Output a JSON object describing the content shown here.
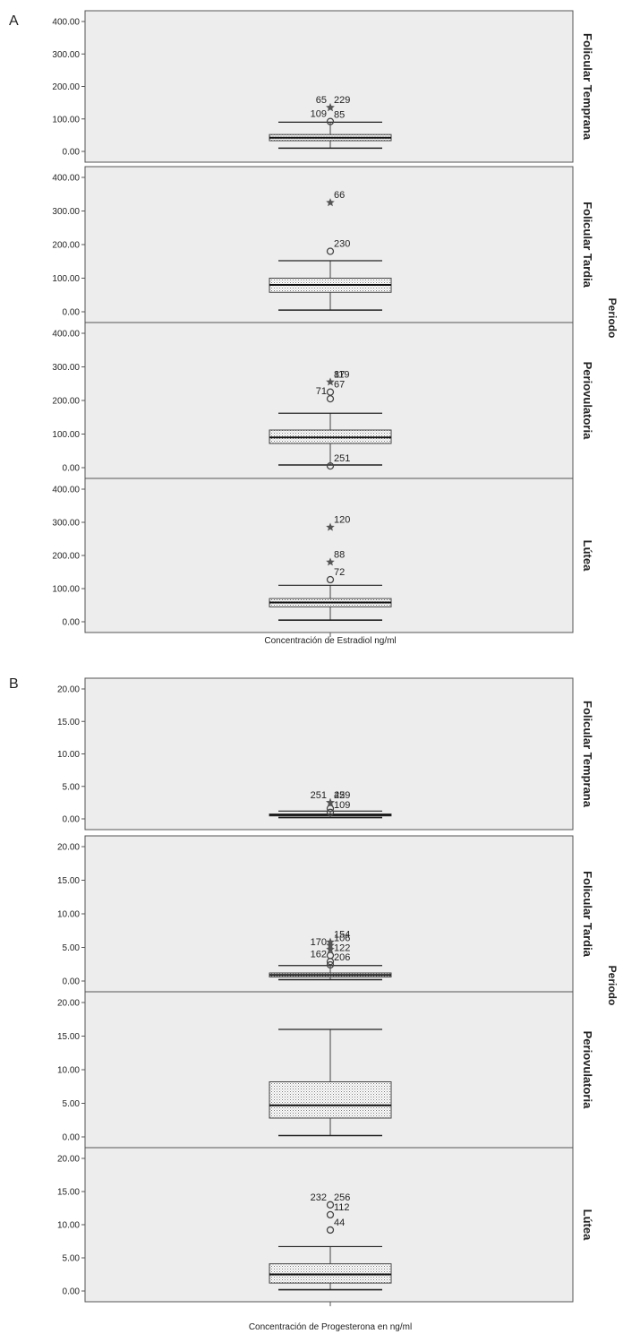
{
  "chart_data": [
    {
      "type": "boxplot",
      "panel_label": "A",
      "xlabel": "Concentración de Estradiol ng/ml",
      "facet_title": "Periodo",
      "ylim": [
        0,
        400
      ],
      "yticks": [
        "0.00",
        "100.00",
        "200.00",
        "300.00",
        "400.00"
      ],
      "facets": [
        {
          "name": "Folicular Temprana",
          "box": {
            "whisker_low": 10,
            "q1": 33,
            "median": 42,
            "q3": 52,
            "whisker_high": 90
          },
          "outliers": [
            {
              "value": 92,
              "marker": "circle",
              "label": "109",
              "label_side": "left"
            },
            {
              "value": 135,
              "marker": "star",
              "label": "65",
              "label_side": "left"
            },
            {
              "value": 135,
              "marker": "star",
              "label": "229",
              "label_side": "right"
            },
            {
              "value": 90,
              "marker": "none",
              "label": "85",
              "label_side": "right"
            }
          ]
        },
        {
          "name": "Folicular Tardia",
          "box": {
            "whisker_low": 5,
            "q1": 58,
            "median": 80,
            "q3": 100,
            "whisker_high": 152
          },
          "outliers": [
            {
              "value": 180,
              "marker": "circle",
              "label": "230",
              "label_side": "right"
            },
            {
              "value": 325,
              "marker": "star",
              "label": "66",
              "label_side": "right"
            }
          ]
        },
        {
          "name": "Periovulatoria",
          "box": {
            "whisker_low": 8,
            "q1": 72,
            "median": 90,
            "q3": 112,
            "whisker_high": 162
          },
          "outliers": [
            {
              "value": 5,
              "marker": "circle",
              "label": "251",
              "label_side": "right"
            },
            {
              "value": 205,
              "marker": "circle",
              "label": "71",
              "label_side": "left"
            },
            {
              "value": 225,
              "marker": "circle",
              "label": "67",
              "label_side": "right"
            },
            {
              "value": 255,
              "marker": "star",
              "label": "87",
              "label_side": "right"
            },
            {
              "value": 255,
              "marker": "none",
              "label": "119",
              "label_side": "right"
            }
          ]
        },
        {
          "name": "Lútea",
          "box": {
            "whisker_low": 5,
            "q1": 45,
            "median": 58,
            "q3": 70,
            "whisker_high": 110
          },
          "outliers": [
            {
              "value": 127,
              "marker": "circle",
              "label": "72",
              "label_side": "right"
            },
            {
              "value": 180,
              "marker": "star",
              "label": "88",
              "label_side": "right"
            },
            {
              "value": 285,
              "marker": "star",
              "label": "120",
              "label_side": "right"
            }
          ]
        }
      ]
    },
    {
      "type": "boxplot",
      "panel_label": "B",
      "xlabel": "Concentración de Progesterona en ng/ml",
      "facet_title": "Periodo",
      "ylim": [
        0,
        20
      ],
      "yticks": [
        "0.00",
        "5.00",
        "10.00",
        "15.00",
        "20.00"
      ],
      "facets": [
        {
          "name": "Folicular Temprana",
          "box": {
            "whisker_low": 0.2,
            "q1": 0.45,
            "median": 0.6,
            "q3": 0.75,
            "whisker_high": 1.2
          },
          "outliers": [
            {
              "value": 1.0,
              "marker": "circle",
              "label": "109",
              "label_side": "right"
            },
            {
              "value": 1.6,
              "marker": "circle",
              "label": "",
              "label_side": "right"
            },
            {
              "value": 2.5,
              "marker": "star",
              "label": "251",
              "label_side": "left"
            },
            {
              "value": 2.5,
              "marker": "star",
              "label": "45",
              "label_side": "right"
            },
            {
              "value": 2.5,
              "marker": "none",
              "label": "229",
              "label_side": "right"
            }
          ]
        },
        {
          "name": "Folicular Tardia",
          "box": {
            "whisker_low": 0.2,
            "q1": 0.6,
            "median": 0.9,
            "q3": 1.2,
            "whisker_high": 2.3
          },
          "outliers": [
            {
              "value": 2.4,
              "marker": "circle",
              "label": "206",
              "label_side": "right"
            },
            {
              "value": 2.9,
              "marker": "circle",
              "label": "162",
              "label_side": "left"
            },
            {
              "value": 3.8,
              "marker": "circle",
              "label": "122",
              "label_side": "right"
            },
            {
              "value": 4.7,
              "marker": "star",
              "label": "170",
              "label_side": "left"
            },
            {
              "value": 5.3,
              "marker": "star",
              "label": "106",
              "label_side": "right"
            },
            {
              "value": 5.8,
              "marker": "star",
              "label": "154",
              "label_side": "right"
            }
          ]
        },
        {
          "name": "Periovulatoria",
          "box": {
            "whisker_low": 0.2,
            "q1": 2.8,
            "median": 4.7,
            "q3": 8.2,
            "whisker_high": 16.0
          },
          "outliers": []
        },
        {
          "name": "Lútea",
          "box": {
            "whisker_low": 0.2,
            "q1": 1.2,
            "median": 2.5,
            "q3": 4.1,
            "whisker_high": 6.7
          },
          "outliers": [
            {
              "value": 9.2,
              "marker": "circle",
              "label": "44",
              "label_side": "right"
            },
            {
              "value": 11.5,
              "marker": "circle",
              "label": "112",
              "label_side": "right"
            },
            {
              "value": 13.0,
              "marker": "circle",
              "label": "232",
              "label_side": "left"
            },
            {
              "value": 13.0,
              "marker": "none",
              "label": "256",
              "label_side": "right"
            }
          ]
        }
      ]
    }
  ]
}
